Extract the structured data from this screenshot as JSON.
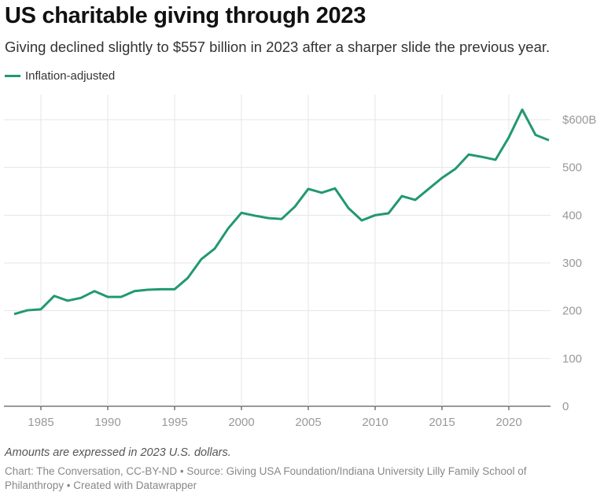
{
  "title": "US charitable giving through 2023",
  "subtitle": "Giving declined slightly to $557 billion in 2023 after a sharper slide the previous year.",
  "note": "Amounts are expressed in 2023 U.S. dollars.",
  "source": "Chart: The Conversation, CC-BY-ND • Source: Giving USA Foundation/Indiana University Lilly Family School of Philanthropy • Created with Datawrapper",
  "colors": {
    "line": "#21996e",
    "grid": "#e5e5e5",
    "tick": "#999999"
  },
  "chart_data": {
    "type": "line",
    "title": "US charitable giving through 2023",
    "xlabel": "",
    "ylabel": "",
    "xlim": [
      1983,
      2023
    ],
    "ylim": [
      0,
      600
    ],
    "grid": true,
    "legend_position": "top-left",
    "x_ticks": [
      1985,
      1990,
      1995,
      2000,
      2005,
      2010,
      2015,
      2020
    ],
    "y_ticks": [
      0,
      100,
      200,
      300,
      400,
      500,
      600
    ],
    "y_tick_labels": [
      "0",
      "100",
      "200",
      "300",
      "400",
      "500",
      "$600B"
    ],
    "series": [
      {
        "name": "Inflation-adjusted",
        "x": [
          1983,
          1984,
          1985,
          1986,
          1987,
          1988,
          1989,
          1990,
          1991,
          1992,
          1993,
          1994,
          1995,
          1996,
          1997,
          1998,
          1999,
          2000,
          2001,
          2002,
          2003,
          2004,
          2005,
          2006,
          2007,
          2008,
          2009,
          2010,
          2011,
          2012,
          2013,
          2014,
          2015,
          2016,
          2017,
          2018,
          2019,
          2020,
          2021,
          2022,
          2023
        ],
        "values": [
          193,
          201,
          203,
          231,
          221,
          227,
          241,
          229,
          229,
          241,
          244,
          245,
          245,
          269,
          308,
          330,
          372,
          405,
          399,
          394,
          392,
          418,
          455,
          447,
          456,
          415,
          389,
          400,
          404,
          440,
          432,
          455,
          478,
          497,
          527,
          522,
          516,
          563,
          621,
          568,
          557
        ]
      }
    ]
  }
}
